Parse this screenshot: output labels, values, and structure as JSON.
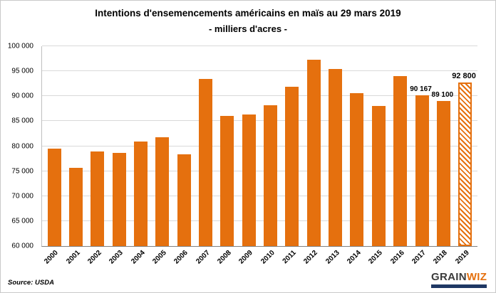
{
  "source_label": "Source: USDA",
  "footer": {
    "logo_grain": "GRAIN",
    "logo_wiz": "WIZ"
  },
  "colors": {
    "bar": "#e5700e",
    "gridline": "#d9d9d9",
    "logo_bar": "#1f3864"
  },
  "chart_data": {
    "type": "bar",
    "title": "Intentions d'ensemencements américains en maïs au 29 mars 2019",
    "subtitle": "- milliers d'acres -",
    "categories": [
      "2000",
      "2001",
      "2002",
      "2003",
      "2004",
      "2005",
      "2006",
      "2007",
      "2008",
      "2009",
      "2010",
      "2011",
      "2012",
      "2013",
      "2014",
      "2015",
      "2016",
      "2017",
      "2018",
      "2019"
    ],
    "values": [
      79500,
      75700,
      78900,
      78600,
      80900,
      81800,
      78300,
      93500,
      86000,
      86400,
      88200,
      91900,
      97300,
      95400,
      90600,
      88000,
      94000,
      90167,
      89100,
      92800
    ],
    "ylim": [
      60000,
      100000
    ],
    "yticks": [
      {
        "value": 60000,
        "label": "60 000"
      },
      {
        "value": 65000,
        "label": "65 000"
      },
      {
        "value": 70000,
        "label": "70 000"
      },
      {
        "value": 75000,
        "label": "75 000"
      },
      {
        "value": 80000,
        "label": "80 000"
      },
      {
        "value": 85000,
        "label": "85 000"
      },
      {
        "value": 90000,
        "label": "90 000"
      },
      {
        "value": 95000,
        "label": "95 000"
      },
      {
        "value": 100000,
        "label": "100 000"
      }
    ],
    "annotations": [
      {
        "category": "2017",
        "label": "90 167",
        "emphasis": false
      },
      {
        "category": "2018",
        "label": "89 100",
        "emphasis": false
      },
      {
        "category": "2019",
        "label": "92 800",
        "emphasis": true
      }
    ],
    "hatched_categories": [
      "2019"
    ],
    "grid": true,
    "legend": false,
    "xlabel": "",
    "ylabel": ""
  }
}
